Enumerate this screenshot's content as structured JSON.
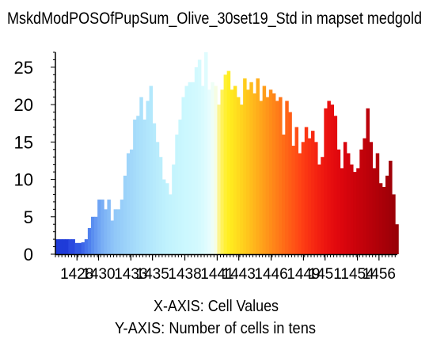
{
  "chart_data": {
    "type": "bar",
    "title": "MskdModPOSOfPupSum_Olive_30set19_Std in mapset medgold",
    "xlabel": "X-AXIS: Cell Values",
    "ylabel": "Y-AXIS: Number of cells in tens",
    "ylim": [
      0,
      27
    ],
    "xlim": [
      1426,
      1457.7
    ],
    "grid": false,
    "y_ticks": [
      0,
      5,
      10,
      15,
      20,
      25
    ],
    "y_tick_labels": [
      "0",
      "5",
      "10",
      "15",
      "20",
      "25"
    ],
    "x_ticks": [
      1428,
      1430,
      1433,
      1435,
      1438,
      1441,
      1443,
      1446,
      1449,
      1451,
      1454,
      1456
    ],
    "x_tick_labels": [
      "1428",
      "1430",
      "1433",
      "1435",
      "1438",
      "1441",
      "1443",
      "1446",
      "1449",
      "1451",
      "1454",
      "1456"
    ],
    "series": [
      {
        "x": [
          1426.0,
          1426.3,
          1426.6,
          1426.9,
          1427.2,
          1427.5,
          1427.8,
          1428.1,
          1428.4,
          1428.7,
          1429.0,
          1429.3,
          1429.6,
          1429.9,
          1430.2,
          1430.5,
          1430.8,
          1431.1,
          1431.4,
          1431.7,
          1432.0,
          1432.3,
          1432.6,
          1432.9,
          1433.2,
          1433.5,
          1433.8,
          1434.1,
          1434.4,
          1434.7,
          1435.0,
          1435.3,
          1435.6,
          1435.9,
          1436.2,
          1436.5,
          1436.8,
          1437.1,
          1437.4,
          1437.7,
          1438.0,
          1438.3,
          1438.6,
          1438.9,
          1439.2,
          1439.5,
          1439.8,
          1440.1,
          1440.4,
          1440.7,
          1441.0,
          1441.3,
          1441.6,
          1441.9,
          1442.2,
          1442.5,
          1442.8,
          1443.1,
          1443.4,
          1443.7,
          1444.0,
          1444.3,
          1444.6,
          1444.9,
          1445.2,
          1445.5,
          1445.8,
          1446.1,
          1446.4,
          1446.7,
          1447.0,
          1447.3,
          1447.6,
          1447.9,
          1448.2,
          1448.5,
          1448.8,
          1449.1,
          1449.4,
          1449.7,
          1450.0,
          1450.3,
          1450.6,
          1450.9,
          1451.2,
          1451.5,
          1451.8,
          1452.1,
          1452.4,
          1452.7,
          1453.0,
          1453.3,
          1453.6,
          1453.9,
          1454.2,
          1454.5,
          1454.8,
          1455.1,
          1455.4,
          1455.7,
          1456.0,
          1456.3,
          1456.6,
          1456.9,
          1457.2,
          1457.5
        ],
        "values": [
          2.0,
          2.0,
          2.0,
          2.0,
          2.0,
          2.0,
          1.5,
          1.5,
          1.6,
          2.0,
          3.5,
          5.0,
          5.0,
          7.3,
          7.3,
          6.0,
          7.3,
          4.5,
          6.0,
          6.0,
          7.3,
          10.5,
          13.5,
          14.0,
          18.0,
          18.5,
          21.0,
          18.0,
          20.5,
          22.5,
          17.5,
          15.0,
          13.0,
          10.0,
          9.5,
          8.0,
          12.0,
          16.0,
          18.0,
          21.0,
          22.5,
          23.0,
          23.0,
          25.0,
          26.0,
          22.5,
          27.0,
          22.0,
          23.0,
          22.5,
          20.0,
          22.0,
          24.0,
          24.5,
          22.0,
          22.5,
          21.0,
          20.0,
          23.5,
          22.0,
          23.0,
          21.5,
          23.5,
          20.5,
          22.5,
          21.0,
          22.0,
          21.5,
          20.5,
          21.0,
          16.0,
          20.5,
          19.0,
          14.5,
          17.0,
          13.5,
          15.0,
          17.0,
          15.5,
          16.5,
          15.0,
          12.0,
          13.0,
          19.5,
          20.5,
          20.0,
          18.5,
          14.0,
          11.5,
          15.0,
          13.5,
          12.0,
          11.0,
          11.5,
          14.0,
          15.5,
          19.5,
          15.0,
          11.5,
          13.5,
          9.5,
          9.0,
          10.5,
          12.5,
          8.0,
          4.0
        ],
        "colors": [
          "#1f3bd8",
          "#1f3bd8",
          "#1f3bd8",
          "#1f3bd8",
          "#2a48e0",
          "#2a48e0",
          "#3358e4",
          "#3358e4",
          "#3d66e8",
          "#4774ec",
          "#4f80ee",
          "#5a8ef0",
          "#6599f2",
          "#6fa4f4",
          "#79aef5",
          "#80b6f6",
          "#86bcf7",
          "#8cc2f8",
          "#91c8f8",
          "#94cbf8",
          "#98cef9",
          "#9bd2f9",
          "#9fd5fa",
          "#a2d8fa",
          "#a5dbfa",
          "#a8defb",
          "#abe1fb",
          "#aee3fb",
          "#b1e6fc",
          "#b3e8fc",
          "#b6eafc",
          "#b9ecfc",
          "#bbeefc",
          "#bdf0fd",
          "#c0f2fd",
          "#c2f3fd",
          "#c4f4fd",
          "#c6f5fd",
          "#c8f6fd",
          "#caf7fe",
          "#ccf8fe",
          "#cef8fe",
          "#d0f9fe",
          "#d2f9fe",
          "#d5fafe",
          "#d9fbfe",
          "#dffcfe",
          "#e6fdfe",
          "#eefef6",
          "#f6fde3",
          "#fdf58e",
          "#fff25a",
          "#fff036",
          "#ffee22",
          "#ffe81f",
          "#ffe11f",
          "#ffda1e",
          "#ffd31e",
          "#ffcc1d",
          "#ffc51d",
          "#ffbd1c",
          "#ffb51c",
          "#ffad1b",
          "#ffa51b",
          "#ff9d1a",
          "#ff951a",
          "#ff8d19",
          "#ff8519",
          "#ff7d18",
          "#ff7518",
          "#ff6d17",
          "#ff6517",
          "#ff5d16",
          "#ff5516",
          "#ff4d15",
          "#ff4515",
          "#fd3d14",
          "#fb3613",
          "#f93013",
          "#f72a12",
          "#f52411",
          "#f21f11",
          "#ef1a10",
          "#ec1510",
          "#e9110f",
          "#e60d0f",
          "#e30a0e",
          "#e0080e",
          "#dc060d",
          "#d8050d",
          "#d4040c",
          "#d0030c",
          "#cc030b",
          "#c8020b",
          "#c4020b",
          "#c0020a",
          "#bc010a",
          "#b8010a",
          "#b40109",
          "#b00109",
          "#ac0009",
          "#a80008",
          "#a40008",
          "#a00008",
          "#9c0007",
          "#980007"
        ]
      }
    ]
  }
}
